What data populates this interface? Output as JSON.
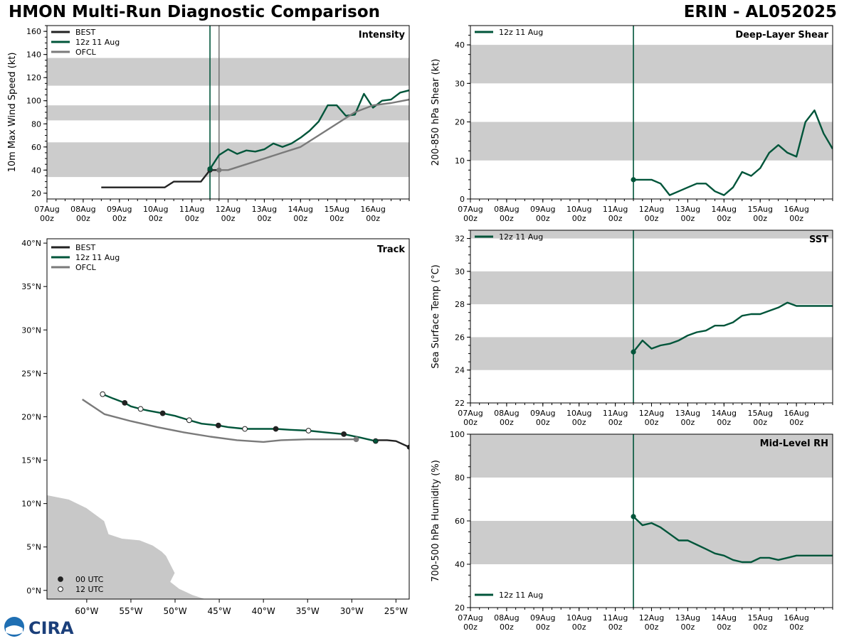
{
  "header": {
    "title": "HMON Multi-Run Diagnostic Comparison",
    "storm": "ERIN - AL052025"
  },
  "colors": {
    "best": "#222222",
    "run": "#00553a",
    "ofcl": "#7a7a7a",
    "band": "#cccccc",
    "land": "#c8c8c8"
  },
  "time_axis": {
    "start": 7,
    "end": 17,
    "ticks": [
      {
        "d": 7,
        "label": "07Aug\n00z"
      },
      {
        "d": 8,
        "label": "08Aug\n00z"
      },
      {
        "d": 9,
        "label": "09Aug\n00z"
      },
      {
        "d": 10,
        "label": "10Aug\n00z"
      },
      {
        "d": 11,
        "label": "11Aug\n00z"
      },
      {
        "d": 12,
        "label": "12Aug\n00z"
      },
      {
        "d": 13,
        "label": "13Aug\n00z"
      },
      {
        "d": 14,
        "label": "14Aug\n00z"
      },
      {
        "d": 15,
        "label": "15Aug\n00z"
      },
      {
        "d": 16,
        "label": "16Aug\n00z"
      }
    ]
  },
  "chart_data": [
    {
      "id": "intensity",
      "type": "line",
      "title": "Intensity",
      "ylabel": "10m Max Wind Speed (kt)",
      "ylim": [
        15,
        165
      ],
      "yticks": [
        20,
        40,
        60,
        80,
        100,
        120,
        140,
        160
      ],
      "ybands": [
        [
          34,
          64
        ],
        [
          83,
          96
        ],
        [
          113,
          137
        ]
      ],
      "vlines": [
        {
          "x": 11.5,
          "series": "run"
        },
        {
          "x": 11.75,
          "series": "ofcl"
        }
      ],
      "legend": [
        {
          "label": "BEST",
          "series": "best"
        },
        {
          "label": "12z 11 Aug",
          "series": "run"
        },
        {
          "label": "OFCL",
          "series": "ofcl"
        }
      ],
      "series": [
        {
          "name": "BEST",
          "key": "best",
          "x": [
            8.5,
            8.75,
            9.0,
            9.25,
            9.5,
            9.75,
            10.0,
            10.25,
            10.5,
            10.75,
            11.0,
            11.25,
            11.5,
            11.75
          ],
          "y": [
            25,
            25,
            25,
            25,
            25,
            25,
            25,
            25,
            30,
            30,
            30,
            30,
            40,
            40
          ],
          "markers": [
            {
              "x": 11.5,
              "y": 40
            }
          ]
        },
        {
          "name": "12z 11 Aug",
          "key": "run",
          "x": [
            11.5,
            11.75,
            12.0,
            12.25,
            12.5,
            12.75,
            13.0,
            13.25,
            13.5,
            13.75,
            14.0,
            14.25,
            14.5,
            14.75,
            15.0,
            15.25,
            15.5,
            15.75,
            16.0,
            16.25,
            16.5,
            16.75,
            17.0
          ],
          "y": [
            41,
            53,
            58,
            54,
            57,
            56,
            58,
            63,
            60,
            63,
            68,
            74,
            82,
            96,
            96,
            87,
            88,
            106,
            94,
            100,
            101,
            107,
            109
          ],
          "markers": [
            {
              "x": 11.5,
              "y": 41
            }
          ]
        },
        {
          "name": "OFCL",
          "key": "ofcl",
          "x": [
            11.75,
            12.0,
            12.5,
            13.0,
            13.5,
            14.0,
            14.5,
            15.0,
            15.5,
            16.0,
            16.5,
            17.0
          ],
          "y": [
            40,
            40,
            45,
            50,
            55,
            60,
            70,
            80,
            90,
            96,
            98,
            101
          ],
          "markers": [
            {
              "x": 11.75,
              "y": 40
            }
          ]
        }
      ]
    },
    {
      "id": "shear",
      "type": "line",
      "title": "Deep-Layer Shear",
      "ylabel": "200-850 hPa Shear (kt)",
      "ylim": [
        0,
        45
      ],
      "yticks": [
        0,
        10,
        20,
        30,
        40
      ],
      "ybands": [
        [
          10,
          20
        ],
        [
          30,
          40
        ]
      ],
      "vlines": [
        {
          "x": 11.5,
          "series": "run"
        }
      ],
      "legend": [
        {
          "label": "12z 11 Aug",
          "series": "run"
        }
      ],
      "series": [
        {
          "name": "12z 11 Aug",
          "key": "run",
          "x": [
            11.5,
            11.75,
            12.0,
            12.25,
            12.5,
            12.75,
            13.0,
            13.25,
            13.5,
            13.75,
            14.0,
            14.25,
            14.5,
            14.75,
            15.0,
            15.25,
            15.5,
            15.75,
            16.0,
            16.25,
            16.5,
            16.75,
            17.0
          ],
          "y": [
            5,
            5,
            5,
            4,
            1,
            2,
            3,
            4,
            4,
            2,
            1,
            3,
            7,
            6,
            8,
            12,
            14,
            12,
            11,
            20,
            23,
            17,
            13
          ],
          "markers": [
            {
              "x": 11.5,
              "y": 5
            }
          ]
        }
      ]
    },
    {
      "id": "track",
      "type": "line",
      "title": "Track",
      "xlim": [
        -64.5,
        -23.5
      ],
      "ylim": [
        -1,
        40.5
      ],
      "xticks": [
        {
          "v": -60,
          "label": "60°W"
        },
        {
          "v": -55,
          "label": "55°W"
        },
        {
          "v": -50,
          "label": "50°W"
        },
        {
          "v": -45,
          "label": "45°W"
        },
        {
          "v": -40,
          "label": "40°W"
        },
        {
          "v": -35,
          "label": "35°W"
        },
        {
          "v": -30,
          "label": "30°W"
        },
        {
          "v": -25,
          "label": "25°W"
        }
      ],
      "yticks": [
        {
          "v": 0,
          "label": "0°N"
        },
        {
          "v": 5,
          "label": "5°N"
        },
        {
          "v": 10,
          "label": "10°N"
        },
        {
          "v": 15,
          "label": "15°N"
        },
        {
          "v": 20,
          "label": "20°N"
        },
        {
          "v": 25,
          "label": "25°N"
        },
        {
          "v": 30,
          "label": "30°N"
        },
        {
          "v": 35,
          "label": "35°N"
        },
        {
          "v": 40,
          "label": "40°N"
        }
      ],
      "legend": [
        {
          "label": "BEST",
          "series": "best"
        },
        {
          "label": "12z 11 Aug",
          "series": "run"
        },
        {
          "label": "OFCL",
          "series": "ofcl"
        }
      ],
      "marker_legend": [
        {
          "label": "00 UTC",
          "fill": "filled"
        },
        {
          "label": "12 UTC",
          "fill": "open"
        }
      ],
      "series": [
        {
          "name": "BEST",
          "key": "best",
          "lon": [
            -23.5,
            -25.0,
            -26.0,
            -27.3
          ],
          "lat": [
            16.5,
            17.2,
            17.3,
            17.3
          ]
        },
        {
          "name": "12z 11 Aug",
          "key": "run",
          "lon": [
            -27.3,
            -29.0,
            -30.9,
            -33.0,
            -34.9,
            -37.0,
            -38.6,
            -40.5,
            -42.1,
            -44.0,
            -45.1,
            -47.0,
            -48.4,
            -50.0,
            -51.4,
            -53.0,
            -53.9,
            -55.0,
            -55.7,
            -57.0,
            -58.2
          ],
          "lat": [
            17.2,
            17.6,
            18.0,
            18.2,
            18.4,
            18.5,
            18.6,
            18.6,
            18.6,
            18.8,
            19.0,
            19.2,
            19.6,
            20.1,
            20.4,
            20.7,
            20.9,
            21.2,
            21.6,
            22.1,
            22.6
          ],
          "points": [
            {
              "lon": -27.3,
              "lat": 17.2,
              "fill": "filled"
            },
            {
              "lon": -30.9,
              "lat": 18.0,
              "fill": "filled"
            },
            {
              "lon": -34.9,
              "lat": 18.4,
              "fill": "open"
            },
            {
              "lon": -38.6,
              "lat": 18.6,
              "fill": "filled"
            },
            {
              "lon": -42.1,
              "lat": 18.6,
              "fill": "open"
            },
            {
              "lon": -45.1,
              "lat": 19.0,
              "fill": "filled"
            },
            {
              "lon": -48.4,
              "lat": 19.6,
              "fill": "open"
            },
            {
              "lon": -51.4,
              "lat": 20.4,
              "fill": "filled"
            },
            {
              "lon": -53.9,
              "lat": 20.9,
              "fill": "open"
            },
            {
              "lon": -55.7,
              "lat": 21.6,
              "fill": "filled"
            },
            {
              "lon": -58.2,
              "lat": 22.6,
              "fill": "open"
            }
          ]
        },
        {
          "name": "OFCL",
          "key": "ofcl",
          "lon": [
            -29.5,
            -32.0,
            -35.0,
            -38.0,
            -40.0,
            -43.0,
            -46.0,
            -49.0,
            -52.0,
            -55.0,
            -58.0,
            -60.5
          ],
          "lat": [
            17.4,
            17.4,
            17.4,
            17.3,
            17.1,
            17.3,
            17.7,
            18.2,
            18.8,
            19.5,
            20.3,
            22.0
          ],
          "points": [
            {
              "lon": -29.5,
              "lat": 17.4,
              "fill": "filled"
            }
          ]
        }
      ],
      "land": [
        {
          "lon": [
            -64.5,
            -62.0,
            -60.0,
            -58.0,
            -57.5,
            -56.0,
            -54.0,
            -52.5,
            -51.5,
            -51.0,
            -50.0,
            -50.5,
            -49.5,
            -48.0,
            -46.5,
            -46.0,
            -47.0,
            -64.5
          ],
          "lat": [
            11.0,
            10.5,
            9.5,
            8.0,
            6.5,
            6.0,
            5.8,
            5.2,
            4.5,
            4.0,
            2.0,
            1.0,
            0.2,
            -0.5,
            -1.0,
            -1.5,
            -1.5,
            -1.5
          ]
        }
      ]
    },
    {
      "id": "sst",
      "type": "line",
      "title": "SST",
      "ylabel": "Sea Surface Temp (°C)",
      "ylim": [
        22,
        32.5
      ],
      "yticks": [
        22,
        24,
        26,
        28,
        30,
        32
      ],
      "ybands": [
        [
          24,
          26
        ],
        [
          28,
          30
        ],
        [
          32,
          33
        ]
      ],
      "vlines": [
        {
          "x": 11.5,
          "series": "run"
        }
      ],
      "legend": [
        {
          "label": "12z 11 Aug",
          "series": "run"
        }
      ],
      "series": [
        {
          "name": "12z 11 Aug",
          "key": "run",
          "x": [
            11.5,
            11.75,
            12.0,
            12.25,
            12.5,
            12.75,
            13.0,
            13.25,
            13.5,
            13.75,
            14.0,
            14.25,
            14.5,
            14.75,
            15.0,
            15.25,
            15.5,
            15.75,
            16.0,
            16.25,
            16.5,
            16.75,
            17.0
          ],
          "y": [
            25.1,
            25.8,
            25.3,
            25.5,
            25.6,
            25.8,
            26.1,
            26.3,
            26.4,
            26.7,
            26.7,
            26.9,
            27.3,
            27.4,
            27.4,
            27.6,
            27.8,
            28.1,
            27.9,
            27.9,
            27.9,
            27.9,
            27.9
          ],
          "markers": [
            {
              "x": 11.5,
              "y": 25.1
            }
          ]
        }
      ]
    },
    {
      "id": "rh",
      "type": "line",
      "title": "Mid-Level RH",
      "ylabel": "700-500 hPa Humidity (%)",
      "ylim": [
        20,
        100
      ],
      "yticks": [
        20,
        40,
        60,
        80,
        100
      ],
      "ybands": [
        [
          40,
          60
        ],
        [
          80,
          100
        ]
      ],
      "vlines": [
        {
          "x": 11.5,
          "series": "run"
        }
      ],
      "legend": [
        {
          "label": "12z 11 Aug",
          "series": "run"
        }
      ],
      "series": [
        {
          "name": "12z 11 Aug",
          "key": "run",
          "x": [
            11.5,
            11.75,
            12.0,
            12.25,
            12.5,
            12.75,
            13.0,
            13.25,
            13.5,
            13.75,
            14.0,
            14.25,
            14.5,
            14.75,
            15.0,
            15.25,
            15.5,
            15.75,
            16.0,
            16.25,
            16.5,
            16.75,
            17.0
          ],
          "y": [
            62,
            58,
            59,
            57,
            54,
            51,
            51,
            49,
            47,
            45,
            44,
            42,
            41,
            41,
            43,
            43,
            42,
            43,
            44,
            44,
            44,
            44,
            44
          ],
          "markers": [
            {
              "x": 11.5,
              "y": 62
            }
          ]
        }
      ]
    }
  ],
  "logo": {
    "text": "CIRA"
  }
}
